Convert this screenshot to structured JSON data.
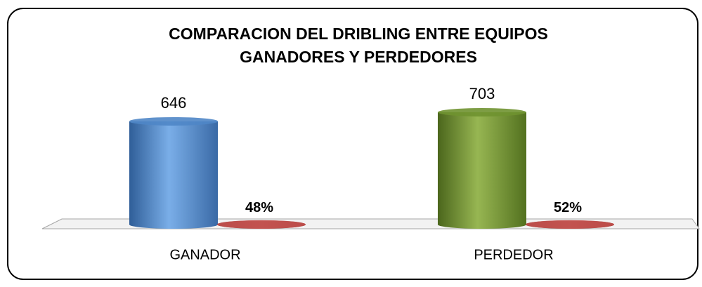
{
  "chart_data": {
    "type": "bar3d",
    "title": [
      "COMPARACION DEL DRIBLING ENTRE EQUIPOS",
      "GANADORES Y PERDEDORES"
    ],
    "categories": [
      "GANADOR",
      "PERDEDOR"
    ],
    "series": [
      {
        "colors": [
          "#4f86c6",
          "#6f9230"
        ],
        "values": [
          646,
          703
        ]
      },
      {
        "color": "#c0504d",
        "values": [
          0.48,
          0.52
        ],
        "value_labels": [
          "48%",
          "52%"
        ]
      }
    ]
  }
}
